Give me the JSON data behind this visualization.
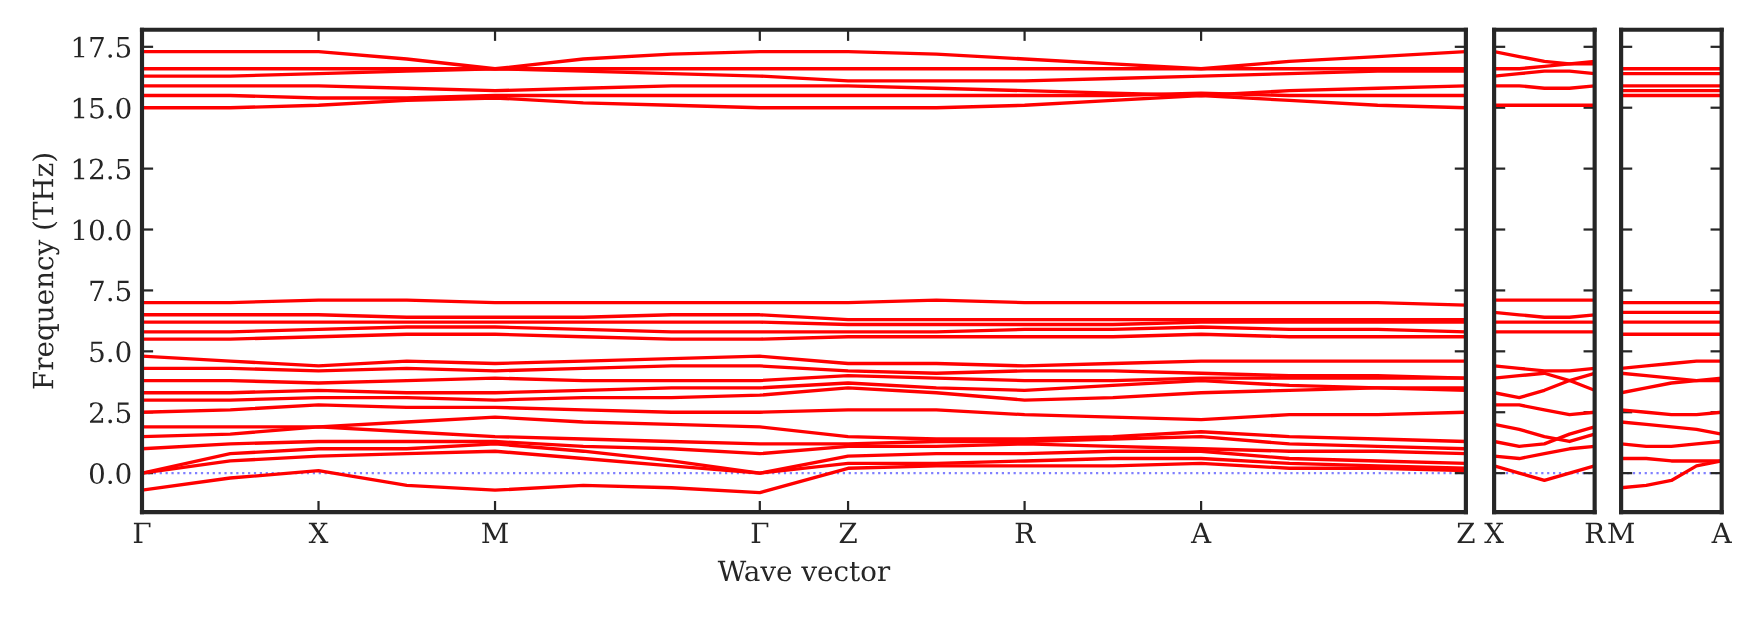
{
  "chart_data": [
    {
      "type": "line",
      "xlabel": "Wave vector",
      "ylabel": "Frequency (THz)",
      "legend": false,
      "grid": false,
      "line_style": "solid",
      "marker": "none",
      "categories": [
        "Γ",
        null,
        "X",
        null,
        "M",
        null,
        null,
        "Γ",
        "Z",
        null,
        "R",
        null,
        "A",
        null,
        null,
        "Z"
      ],
      "ylim": [
        -1.6,
        18.2
      ],
      "yticks": [
        {
          "value": 0,
          "label": "0.0"
        },
        {
          "value": 2.5,
          "label": "2.5"
        },
        {
          "value": 5,
          "label": "5.0"
        },
        {
          "value": 7.5,
          "label": "7.5"
        },
        {
          "value": 10,
          "label": "10.0"
        },
        {
          "value": 12.5,
          "label": "12.5"
        },
        {
          "value": 15,
          "label": "15.0"
        },
        {
          "value": 17.5,
          "label": "17.5"
        }
      ],
      "ref_lines": [
        {
          "axis": "y",
          "value": 0,
          "color": "#8080ff",
          "line_style": "dotted"
        }
      ],
      "series": [
        {
          "color": "#ff0000",
          "values": [
            17.3,
            17.3,
            17.3,
            17.0,
            16.6,
            17.0,
            17.2,
            17.3,
            17.3,
            17.2,
            17.0,
            16.8,
            16.6,
            16.9,
            17.1,
            17.3
          ]
        },
        {
          "color": "#ff0000",
          "values": [
            16.6,
            16.6,
            16.6,
            16.6,
            16.6,
            16.6,
            16.6,
            16.6,
            16.6,
            16.6,
            16.6,
            16.6,
            16.6,
            16.6,
            16.6,
            16.6
          ]
        },
        {
          "color": "#ff0000",
          "values": [
            16.3,
            16.3,
            16.4,
            16.5,
            16.6,
            16.5,
            16.4,
            16.3,
            16.1,
            16.1,
            16.1,
            16.2,
            16.3,
            16.4,
            16.5,
            16.5
          ]
        },
        {
          "color": "#ff0000",
          "values": [
            15.9,
            15.9,
            15.9,
            15.8,
            15.7,
            15.8,
            15.9,
            15.9,
            15.9,
            15.8,
            15.7,
            15.6,
            15.5,
            15.7,
            15.8,
            15.9
          ]
        },
        {
          "color": "#ff0000",
          "values": [
            15.5,
            15.5,
            15.4,
            15.4,
            15.5,
            15.5,
            15.5,
            15.5,
            15.5,
            15.5,
            15.5,
            15.5,
            15.6,
            15.5,
            15.5,
            15.5
          ]
        },
        {
          "color": "#ff0000",
          "values": [
            15.0,
            15.0,
            15.1,
            15.3,
            15.4,
            15.2,
            15.1,
            15.0,
            15.0,
            15.0,
            15.1,
            15.3,
            15.5,
            15.3,
            15.1,
            15.0
          ]
        },
        {
          "color": "#ff0000",
          "values": [
            7.0,
            7.0,
            7.1,
            7.1,
            7.0,
            7.0,
            7.0,
            7.0,
            7.0,
            7.1,
            7.0,
            7.0,
            7.0,
            7.0,
            7.0,
            6.9
          ]
        },
        {
          "color": "#ff0000",
          "values": [
            6.5,
            6.5,
            6.5,
            6.4,
            6.4,
            6.4,
            6.5,
            6.5,
            6.3,
            6.3,
            6.3,
            6.3,
            6.3,
            6.3,
            6.3,
            6.3
          ]
        },
        {
          "color": "#ff0000",
          "values": [
            6.2,
            6.2,
            6.2,
            6.2,
            6.2,
            6.2,
            6.2,
            6.2,
            6.1,
            6.1,
            6.1,
            6.1,
            6.2,
            6.2,
            6.2,
            6.2
          ]
        },
        {
          "color": "#ff0000",
          "values": [
            5.8,
            5.8,
            5.9,
            6.0,
            6.0,
            5.9,
            5.8,
            5.8,
            5.8,
            5.8,
            5.9,
            5.9,
            6.0,
            5.9,
            5.9,
            5.8
          ]
        },
        {
          "color": "#ff0000",
          "values": [
            5.5,
            5.5,
            5.6,
            5.7,
            5.7,
            5.6,
            5.5,
            5.5,
            5.6,
            5.6,
            5.6,
            5.6,
            5.7,
            5.6,
            5.6,
            5.6
          ]
        },
        {
          "color": "#ff0000",
          "values": [
            4.8,
            4.6,
            4.4,
            4.6,
            4.5,
            4.6,
            4.7,
            4.8,
            4.5,
            4.5,
            4.4,
            4.5,
            4.6,
            4.6,
            4.6,
            4.6
          ]
        },
        {
          "color": "#ff0000",
          "values": [
            4.3,
            4.3,
            4.2,
            4.3,
            4.2,
            4.3,
            4.4,
            4.4,
            4.2,
            4.1,
            4.2,
            4.2,
            4.1,
            4.0,
            4.0,
            3.9
          ]
        },
        {
          "color": "#ff0000",
          "values": [
            3.8,
            3.8,
            3.7,
            3.8,
            3.9,
            3.8,
            3.8,
            3.8,
            4.0,
            3.9,
            3.8,
            3.8,
            3.9,
            3.9,
            3.9,
            3.9
          ]
        },
        {
          "color": "#ff0000",
          "values": [
            3.3,
            3.3,
            3.4,
            3.3,
            3.3,
            3.4,
            3.5,
            3.5,
            3.7,
            3.5,
            3.4,
            3.6,
            3.8,
            3.6,
            3.5,
            3.4
          ]
        },
        {
          "color": "#ff0000",
          "values": [
            3.0,
            3.0,
            3.1,
            3.1,
            3.0,
            3.1,
            3.1,
            3.2,
            3.5,
            3.3,
            3.0,
            3.1,
            3.3,
            3.4,
            3.5,
            3.5
          ]
        },
        {
          "color": "#ff0000",
          "values": [
            2.5,
            2.6,
            2.8,
            2.7,
            2.7,
            2.6,
            2.5,
            2.5,
            2.6,
            2.6,
            2.4,
            2.3,
            2.2,
            2.4,
            2.4,
            2.5
          ]
        },
        {
          "color": "#ff0000",
          "values": [
            1.9,
            1.9,
            1.9,
            2.1,
            2.3,
            2.1,
            2.0,
            1.9,
            1.5,
            1.4,
            1.4,
            1.5,
            1.7,
            1.5,
            1.4,
            1.3
          ]
        },
        {
          "color": "#ff0000",
          "values": [
            1.5,
            1.6,
            1.9,
            1.7,
            1.5,
            1.4,
            1.3,
            1.2,
            1.2,
            1.3,
            1.3,
            1.4,
            1.5,
            1.2,
            1.1,
            1.0
          ]
        },
        {
          "color": "#ff0000",
          "values": [
            1.0,
            1.2,
            1.3,
            1.3,
            1.3,
            1.1,
            1.0,
            0.8,
            1.1,
            1.1,
            1.2,
            1.1,
            1.0,
            0.9,
            0.9,
            0.8
          ]
        },
        {
          "color": "#ff0000",
          "values": [
            0,
            0.8,
            1.0,
            1.0,
            1.2,
            0.9,
            0.5,
            0,
            0.7,
            0.8,
            0.8,
            0.9,
            0.9,
            0.6,
            0.5,
            0.4
          ]
        },
        {
          "color": "#ff0000",
          "values": [
            0,
            0.5,
            0.7,
            0.8,
            0.9,
            0.6,
            0.3,
            0,
            0.4,
            0.4,
            0.5,
            0.6,
            0.6,
            0.4,
            0.3,
            0.2
          ]
        },
        {
          "color": "#ff0000",
          "values": [
            -0.7,
            -0.2,
            0.1,
            -0.5,
            -0.7,
            -0.5,
            -0.6,
            -0.8,
            0.2,
            0.3,
            0.3,
            0.3,
            0.4,
            0.2,
            0.2,
            0.1
          ]
        }
      ]
    },
    {
      "type": "line",
      "legend": false,
      "grid": false,
      "line_style": "solid",
      "marker": "none",
      "tick_labels": "x",
      "categories": [
        "X",
        null,
        null,
        null,
        "R"
      ],
      "ylim": [
        -1.6,
        18.2
      ],
      "yticks": [
        {
          "value": 0,
          "label": null
        },
        {
          "value": 2.5,
          "label": null
        },
        {
          "value": 5,
          "label": null
        },
        {
          "value": 7.5,
          "label": null
        },
        {
          "value": 10,
          "label": null
        },
        {
          "value": 12.5,
          "label": null
        },
        {
          "value": 15,
          "label": null
        },
        {
          "value": 17.5,
          "label": null
        }
      ],
      "ref_lines": [
        {
          "axis": "y",
          "value": 0,
          "color": "#8080ff",
          "line_style": "dotted"
        }
      ],
      "series": [
        {
          "color": "#ff0000",
          "values": [
            17.3,
            17.1,
            16.9,
            16.8,
            16.9
          ]
        },
        {
          "color": "#ff0000",
          "values": [
            16.6,
            16.6,
            16.7,
            16.8,
            16.8
          ]
        },
        {
          "color": "#ff0000",
          "values": [
            16.3,
            16.4,
            16.5,
            16.5,
            16.4
          ]
        },
        {
          "color": "#ff0000",
          "values": [
            15.9,
            15.9,
            15.8,
            15.8,
            15.9
          ]
        },
        {
          "color": "#ff0000",
          "values": [
            15.1,
            15.1,
            15.1,
            15.1,
            15.1
          ]
        },
        {
          "color": "#ff0000",
          "values": [
            7.1,
            7.1,
            7.1,
            7.1,
            7.1
          ]
        },
        {
          "color": "#ff0000",
          "values": [
            6.6,
            6.5,
            6.4,
            6.4,
            6.5
          ]
        },
        {
          "color": "#ff0000",
          "values": [
            6.2,
            6.2,
            6.2,
            6.2,
            6.2
          ]
        },
        {
          "color": "#ff0000",
          "values": [
            5.8,
            5.8,
            5.8,
            5.8,
            5.8
          ]
        },
        {
          "color": "#ff0000",
          "values": [
            4.4,
            4.3,
            4.2,
            4.2,
            4.3
          ]
        },
        {
          "color": "#ff0000",
          "values": [
            3.9,
            4.0,
            4.1,
            3.8,
            3.4
          ]
        },
        {
          "color": "#ff0000",
          "values": [
            3.3,
            3.1,
            3.4,
            3.8,
            4.1
          ]
        },
        {
          "color": "#ff0000",
          "values": [
            2.8,
            2.8,
            2.6,
            2.4,
            2.5
          ]
        },
        {
          "color": "#ff0000",
          "values": [
            2.0,
            1.8,
            1.5,
            1.3,
            1.6
          ]
        },
        {
          "color": "#ff0000",
          "values": [
            1.3,
            1.1,
            1.2,
            1.6,
            1.9
          ]
        },
        {
          "color": "#ff0000",
          "values": [
            0.7,
            0.6,
            0.8,
            1.0,
            1.1
          ]
        },
        {
          "color": "#ff0000",
          "values": [
            0.3,
            0,
            -0.3,
            0,
            0.3
          ]
        }
      ]
    },
    {
      "type": "line",
      "legend": false,
      "grid": false,
      "line_style": "solid",
      "marker": "none",
      "tick_labels": "x",
      "categories": [
        "M",
        null,
        null,
        null,
        "A"
      ],
      "ylim": [
        -1.6,
        18.2
      ],
      "yticks": [
        {
          "value": 0,
          "label": null
        },
        {
          "value": 2.5,
          "label": null
        },
        {
          "value": 5,
          "label": null
        },
        {
          "value": 7.5,
          "label": null
        },
        {
          "value": 10,
          "label": null
        },
        {
          "value": 12.5,
          "label": null
        },
        {
          "value": 15,
          "label": null
        },
        {
          "value": 17.5,
          "label": null
        }
      ],
      "ref_lines": [
        {
          "axis": "y",
          "value": 0,
          "color": "#8080ff",
          "line_style": "dotted"
        }
      ],
      "series": [
        {
          "color": "#ff0000",
          "values": [
            16.6,
            16.6,
            16.6,
            16.6,
            16.6
          ]
        },
        {
          "color": "#ff0000",
          "values": [
            16.4,
            16.4,
            16.4,
            16.4,
            16.4
          ]
        },
        {
          "color": "#ff0000",
          "values": [
            15.9,
            15.9,
            15.9,
            15.9,
            15.9
          ]
        },
        {
          "color": "#ff0000",
          "values": [
            15.7,
            15.7,
            15.7,
            15.7,
            15.7
          ]
        },
        {
          "color": "#ff0000",
          "values": [
            15.5,
            15.5,
            15.5,
            15.5,
            15.5
          ]
        },
        {
          "color": "#ff0000",
          "values": [
            7.0,
            7.0,
            7.0,
            7.0,
            7.0
          ]
        },
        {
          "color": "#ff0000",
          "values": [
            6.6,
            6.6,
            6.6,
            6.6,
            6.6
          ]
        },
        {
          "color": "#ff0000",
          "values": [
            6.2,
            6.2,
            6.2,
            6.2,
            6.2
          ]
        },
        {
          "color": "#ff0000",
          "values": [
            5.7,
            5.7,
            5.7,
            5.7,
            5.7
          ]
        },
        {
          "color": "#ff0000",
          "values": [
            4.3,
            4.4,
            4.5,
            4.6,
            4.6
          ]
        },
        {
          "color": "#ff0000",
          "values": [
            4.1,
            4.0,
            3.9,
            3.8,
            3.8
          ]
        },
        {
          "color": "#ff0000",
          "values": [
            3.3,
            3.5,
            3.7,
            3.8,
            3.9
          ]
        },
        {
          "color": "#ff0000",
          "values": [
            2.6,
            2.5,
            2.4,
            2.4,
            2.5
          ]
        },
        {
          "color": "#ff0000",
          "values": [
            2.1,
            2.0,
            1.9,
            1.8,
            1.6
          ]
        },
        {
          "color": "#ff0000",
          "values": [
            1.2,
            1.1,
            1.1,
            1.2,
            1.3
          ]
        },
        {
          "color": "#ff0000",
          "values": [
            0.6,
            0.6,
            0.5,
            0.5,
            0.5
          ]
        },
        {
          "color": "#ff0000",
          "values": [
            -0.6,
            -0.5,
            -0.3,
            0.3,
            0.5
          ]
        }
      ]
    }
  ]
}
